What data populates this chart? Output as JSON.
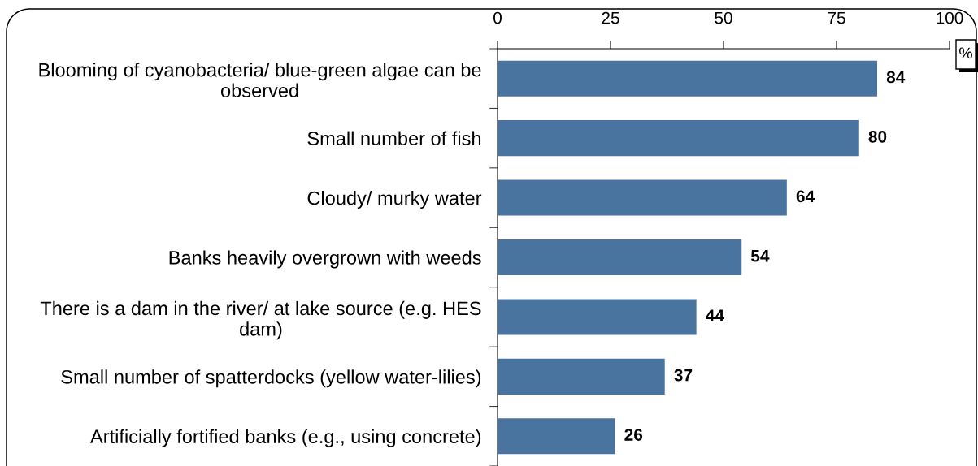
{
  "chart_data": {
    "type": "bar",
    "orientation": "horizontal",
    "categories": [
      "Blooming of cyanobacteria/ blue-green algae can be observed",
      "Small number of fish",
      "Cloudy/ murky water",
      "Banks heavily overgrown with weeds",
      "There is a dam in the river/ at lake source (e.g. HES dam)",
      "Small number of spatterdocks (yellow water-lilies)",
      "Artificially fortified banks (e.g., using concrete)"
    ],
    "values": [
      84,
      80,
      64,
      54,
      44,
      37,
      26
    ],
    "color": "#4a74a0",
    "xlim": [
      0,
      100
    ],
    "xticks": [
      0,
      25,
      50,
      75,
      100
    ],
    "xlabel": "%",
    "data_labels": true
  }
}
